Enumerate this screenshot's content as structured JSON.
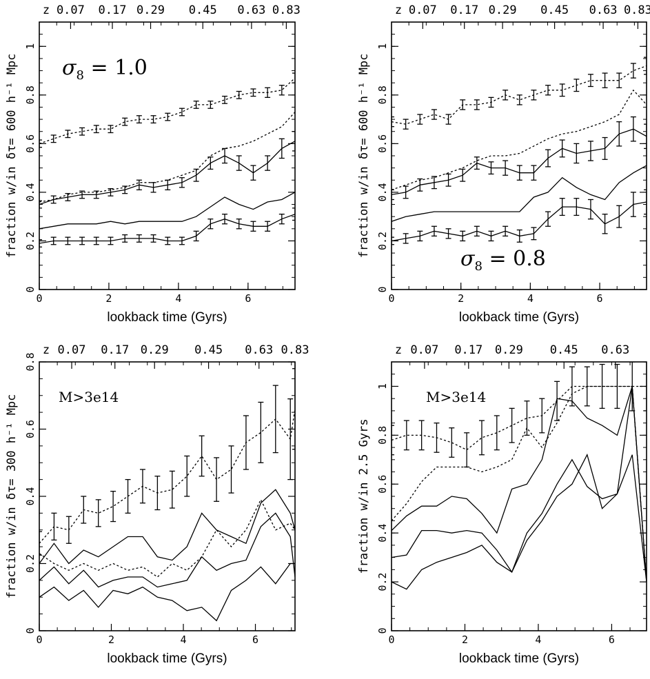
{
  "chart_data": [
    {
      "type": "line",
      "top_axis_label": "z",
      "top_ticks": [
        {
          "z": "0.07",
          "t": 0.9
        },
        {
          "z": "0.17",
          "t": 2.1
        },
        {
          "z": "0.29",
          "t": 3.2
        },
        {
          "z": "0.45",
          "t": 4.7
        },
        {
          "z": "0.63",
          "t": 6.1
        },
        {
          "z": "0.83",
          "t": 7.1
        }
      ],
      "xlabel": "lookback time (Gyrs)",
      "ylabel": "fraction w/in  δτ= 600 h⁻¹ Mpc",
      "annotation": "σ8 = 1.0",
      "annotation_parts": {
        "symbol": "σ",
        "sub": "8",
        "rest": " =  1.0"
      },
      "xlim": [
        0,
        7.35
      ],
      "ylim": [
        0,
        1.1
      ],
      "x_ticks": [
        0,
        2,
        4,
        6
      ],
      "y_ticks": [
        0,
        0.2,
        0.4,
        0.6,
        0.8,
        1
      ],
      "x": [
        0,
        0.41,
        0.82,
        1.23,
        1.64,
        2.05,
        2.46,
        2.87,
        3.28,
        3.69,
        4.1,
        4.51,
        4.92,
        5.33,
        5.74,
        6.15,
        6.56,
        6.97,
        7.35
      ],
      "series": [
        {
          "style": "dotted",
          "values": [
            0.6,
            0.62,
            0.64,
            0.65,
            0.66,
            0.66,
            0.69,
            0.7,
            0.7,
            0.71,
            0.73,
            0.76,
            0.76,
            0.78,
            0.8,
            0.81,
            0.81,
            0.82,
            0.87
          ],
          "errors": [
            0.015,
            0.015,
            0.015,
            0.015,
            0.015,
            0.015,
            0.015,
            0.015,
            0.015,
            0.015,
            0.015,
            0.015,
            0.015,
            0.015,
            0.015,
            0.015,
            0.02,
            0.02,
            0.02
          ]
        },
        {
          "style": "dotted",
          "values": [
            0.36,
            0.37,
            0.39,
            0.4,
            0.4,
            0.41,
            0.42,
            0.44,
            0.44,
            0.45,
            0.47,
            0.49,
            0.55,
            0.58,
            0.59,
            0.61,
            0.64,
            0.67,
            0.73
          ]
        },
        {
          "style": "solid",
          "values": [
            0.35,
            0.37,
            0.38,
            0.39,
            0.39,
            0.4,
            0.41,
            0.43,
            0.42,
            0.43,
            0.44,
            0.47,
            0.52,
            0.55,
            0.52,
            0.48,
            0.52,
            0.58,
            0.61
          ],
          "errors": [
            0.015,
            0.015,
            0.015,
            0.015,
            0.015,
            0.015,
            0.015,
            0.02,
            0.02,
            0.02,
            0.02,
            0.025,
            0.025,
            0.03,
            0.03,
            0.03,
            0.03,
            0.04,
            0.04
          ]
        },
        {
          "style": "solid",
          "values": [
            0.25,
            0.26,
            0.27,
            0.27,
            0.27,
            0.28,
            0.27,
            0.28,
            0.28,
            0.28,
            0.28,
            0.3,
            0.34,
            0.38,
            0.35,
            0.33,
            0.36,
            0.37,
            0.4
          ]
        },
        {
          "style": "solid",
          "values": [
            0.19,
            0.2,
            0.2,
            0.2,
            0.2,
            0.2,
            0.21,
            0.21,
            0.21,
            0.2,
            0.2,
            0.22,
            0.27,
            0.29,
            0.27,
            0.26,
            0.26,
            0.29,
            0.31
          ],
          "errors": [
            0.015,
            0.015,
            0.015,
            0.015,
            0.015,
            0.015,
            0.015,
            0.015,
            0.015,
            0.015,
            0.015,
            0.02,
            0.02,
            0.02,
            0.02,
            0.02,
            0.02,
            0.02,
            0.025
          ]
        }
      ]
    },
    {
      "type": "line",
      "top_axis_label": "z",
      "top_ticks": [
        {
          "z": "0.07",
          "t": 0.9
        },
        {
          "z": "0.17",
          "t": 2.1
        },
        {
          "z": "0.29",
          "t": 3.2
        },
        {
          "z": "0.45",
          "t": 4.7
        },
        {
          "z": "0.63",
          "t": 6.1
        },
        {
          "z": "0.83",
          "t": 7.1
        }
      ],
      "xlabel": "lookback time (Gyrs)",
      "ylabel": "fraction w/in  δτ= 600 h⁻¹ Mpc",
      "annotation": "σ8 = 0.8",
      "annotation_parts": {
        "symbol": "σ",
        "sub": "8",
        "rest": " =  0.8"
      },
      "xlim": [
        0,
        7.35
      ],
      "ylim": [
        0,
        1.1
      ],
      "x_ticks": [
        0,
        2,
        4,
        6
      ],
      "y_ticks": [
        0,
        0.2,
        0.4,
        0.6,
        0.8,
        1
      ],
      "x": [
        0,
        0.41,
        0.82,
        1.23,
        1.64,
        2.05,
        2.46,
        2.87,
        3.28,
        3.69,
        4.1,
        4.51,
        4.92,
        5.33,
        5.74,
        6.15,
        6.56,
        6.97,
        7.35
      ],
      "series": [
        {
          "style": "dotted",
          "values": [
            0.69,
            0.68,
            0.7,
            0.72,
            0.7,
            0.76,
            0.76,
            0.77,
            0.8,
            0.78,
            0.8,
            0.82,
            0.82,
            0.84,
            0.86,
            0.86,
            0.86,
            0.9,
            0.92
          ],
          "errors": [
            0.02,
            0.02,
            0.02,
            0.02,
            0.02,
            0.02,
            0.02,
            0.02,
            0.02,
            0.02,
            0.02,
            0.02,
            0.025,
            0.025,
            0.025,
            0.03,
            0.03,
            0.03,
            0.035
          ]
        },
        {
          "style": "dotted",
          "values": [
            0.41,
            0.43,
            0.45,
            0.46,
            0.48,
            0.5,
            0.53,
            0.55,
            0.55,
            0.56,
            0.59,
            0.62,
            0.64,
            0.65,
            0.67,
            0.69,
            0.72,
            0.82,
            0.76
          ]
        },
        {
          "style": "solid",
          "values": [
            0.39,
            0.4,
            0.43,
            0.44,
            0.45,
            0.47,
            0.52,
            0.5,
            0.5,
            0.48,
            0.48,
            0.54,
            0.58,
            0.56,
            0.57,
            0.58,
            0.64,
            0.66,
            0.63
          ],
          "errors": [
            0.02,
            0.025,
            0.025,
            0.025,
            0.025,
            0.025,
            0.025,
            0.025,
            0.03,
            0.03,
            0.03,
            0.035,
            0.035,
            0.04,
            0.04,
            0.045,
            0.05,
            0.05,
            0.05
          ]
        },
        {
          "style": "solid",
          "values": [
            0.28,
            0.3,
            0.31,
            0.32,
            0.32,
            0.32,
            0.32,
            0.32,
            0.32,
            0.32,
            0.38,
            0.4,
            0.46,
            0.42,
            0.39,
            0.37,
            0.44,
            0.48,
            0.51
          ]
        },
        {
          "style": "solid",
          "values": [
            0.2,
            0.21,
            0.22,
            0.24,
            0.23,
            0.22,
            0.24,
            0.22,
            0.24,
            0.22,
            0.23,
            0.29,
            0.34,
            0.34,
            0.33,
            0.27,
            0.3,
            0.35,
            0.36
          ],
          "errors": [
            0.015,
            0.02,
            0.02,
            0.02,
            0.02,
            0.02,
            0.02,
            0.02,
            0.02,
            0.025,
            0.025,
            0.03,
            0.035,
            0.035,
            0.04,
            0.04,
            0.045,
            0.05,
            0.05
          ]
        }
      ]
    },
    {
      "type": "line",
      "top_axis_label": "z",
      "top_ticks": [
        {
          "z": "0.07",
          "t": 0.9
        },
        {
          "z": "0.17",
          "t": 2.1
        },
        {
          "z": "0.29",
          "t": 3.2
        },
        {
          "z": "0.45",
          "t": 4.7
        },
        {
          "z": "0.63",
          "t": 6.1
        },
        {
          "z": "0.83",
          "t": 7.1
        }
      ],
      "xlabel": "lookback time (Gyrs)",
      "ylabel": "fraction w/in  δτ= 300 h⁻¹ Mpc",
      "annotation": "M>3e14",
      "xlim": [
        0,
        7.1
      ],
      "ylim": [
        0,
        0.8
      ],
      "x_ticks": [
        0,
        2,
        4,
        6
      ],
      "y_ticks": [
        0,
        0.2,
        0.4,
        0.6,
        0.8
      ],
      "x": [
        0,
        0.41,
        0.82,
        1.23,
        1.64,
        2.05,
        2.46,
        2.87,
        3.28,
        3.69,
        4.1,
        4.51,
        4.92,
        5.33,
        5.74,
        6.15,
        6.56,
        6.97,
        7.1
      ],
      "series": [
        {
          "style": "dotted",
          "values": [
            0.26,
            0.31,
            0.3,
            0.36,
            0.35,
            0.37,
            0.4,
            0.43,
            0.41,
            0.42,
            0.46,
            0.52,
            0.45,
            0.48,
            0.56,
            0.59,
            0.63,
            0.57,
            0.66
          ],
          "errors": [
            0.035,
            0.04,
            0.04,
            0.04,
            0.04,
            0.045,
            0.05,
            0.05,
            0.05,
            0.055,
            0.06,
            0.06,
            0.065,
            0.07,
            0.08,
            0.09,
            0.1,
            0.12,
            0.12
          ]
        },
        {
          "style": "dotted",
          "values": [
            0.23,
            0.2,
            0.18,
            0.2,
            0.18,
            0.2,
            0.18,
            0.19,
            0.16,
            0.2,
            0.18,
            0.22,
            0.3,
            0.25,
            0.3,
            0.39,
            0.3,
            0.32,
            0.3
          ]
        },
        {
          "style": "solid",
          "values": [
            0.2,
            0.26,
            0.2,
            0.24,
            0.22,
            0.25,
            0.28,
            0.28,
            0.22,
            0.21,
            0.25,
            0.35,
            0.3,
            0.28,
            0.26,
            0.38,
            0.42,
            0.35,
            0.3
          ]
        },
        {
          "style": "solid",
          "values": [
            0.15,
            0.19,
            0.14,
            0.18,
            0.13,
            0.15,
            0.16,
            0.16,
            0.13,
            0.14,
            0.15,
            0.22,
            0.18,
            0.2,
            0.21,
            0.31,
            0.35,
            0.28,
            0.16
          ]
        },
        {
          "style": "solid",
          "values": [
            0.1,
            0.13,
            0.09,
            0.12,
            0.07,
            0.12,
            0.11,
            0.13,
            0.1,
            0.09,
            0.06,
            0.07,
            0.03,
            0.12,
            0.15,
            0.19,
            0.14,
            0.2,
            0.2
          ]
        }
      ]
    },
    {
      "type": "line",
      "top_axis_label": "z",
      "top_ticks": [
        {
          "z": "0.07",
          "t": 0.9
        },
        {
          "z": "0.17",
          "t": 2.1
        },
        {
          "z": "0.29",
          "t": 3.2
        },
        {
          "z": "0.45",
          "t": 4.7
        },
        {
          "z": "0.63",
          "t": 6.1
        }
      ],
      "xlabel": "lookback time (Gyrs)",
      "ylabel": "fraction w/in  2.5 Gyrs",
      "annotation": "M>3e14",
      "xlim": [
        0,
        6.95
      ],
      "ylim": [
        0,
        1.1
      ],
      "x_ticks": [
        0,
        2,
        4,
        6
      ],
      "y_ticks": [
        0,
        0.2,
        0.4,
        0.6,
        0.8,
        1
      ],
      "x": [
        0,
        0.41,
        0.82,
        1.23,
        1.64,
        2.05,
        2.46,
        2.87,
        3.28,
        3.69,
        4.1,
        4.51,
        4.92,
        5.33,
        5.74,
        6.15,
        6.56,
        6.95
      ],
      "series": [
        {
          "style": "dotted",
          "values": [
            0.78,
            0.8,
            0.8,
            0.79,
            0.77,
            0.74,
            0.79,
            0.81,
            0.84,
            0.87,
            0.88,
            0.94,
            1.0,
            1.0,
            1.0,
            1.0,
            1.0,
            1.0
          ],
          "errors": [
            0.06,
            0.06,
            0.06,
            0.06,
            0.06,
            0.07,
            0.07,
            0.07,
            0.07,
            0.07,
            0.07,
            0.08,
            0.08,
            0.08,
            0.09,
            0.09,
            0.1,
            0.1
          ]
        },
        {
          "style": "dotted",
          "values": [
            0.45,
            0.52,
            0.61,
            0.67,
            0.67,
            0.67,
            0.65,
            0.67,
            0.7,
            0.83,
            0.75,
            0.85,
            0.97,
            1.0,
            1.0,
            1.0,
            1.0,
            0.2
          ]
        },
        {
          "style": "solid",
          "values": [
            0.41,
            0.47,
            0.51,
            0.51,
            0.55,
            0.54,
            0.48,
            0.4,
            0.58,
            0.6,
            0.7,
            0.95,
            0.94,
            0.87,
            0.84,
            0.8,
            1.0,
            0.2
          ]
        },
        {
          "style": "solid",
          "values": [
            0.3,
            0.31,
            0.41,
            0.41,
            0.4,
            0.41,
            0.4,
            0.33,
            0.24,
            0.4,
            0.48,
            0.6,
            0.7,
            0.59,
            0.54,
            0.56,
            1.0,
            0.2
          ]
        },
        {
          "style": "solid",
          "values": [
            0.2,
            0.17,
            0.25,
            0.28,
            0.3,
            0.32,
            0.35,
            0.28,
            0.24,
            0.37,
            0.45,
            0.55,
            0.6,
            0.72,
            0.5,
            0.56,
            0.72,
            0.2
          ]
        }
      ]
    }
  ]
}
